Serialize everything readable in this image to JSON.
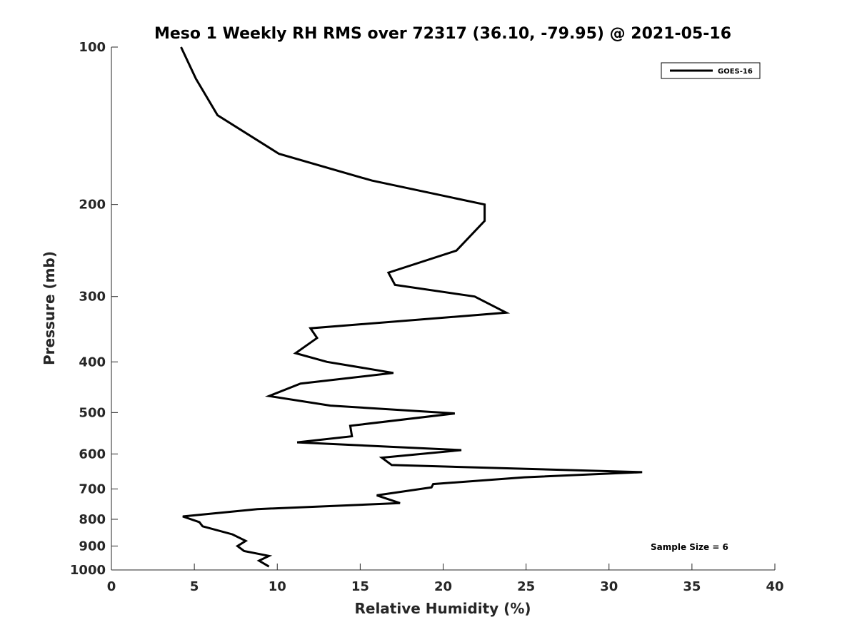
{
  "chart_data": {
    "type": "line",
    "title": "Meso 1 Weekly RH RMS over 72317 (36.10, -79.95) @ 2021-05-16",
    "xlabel": "Relative Humidity (%)",
    "ylabel": "Pressure (mb)",
    "xlim": [
      0,
      40
    ],
    "ylim": [
      100,
      1000
    ],
    "yscale": "log",
    "y_reversed": true,
    "xticks": [
      0,
      5,
      10,
      15,
      20,
      25,
      30,
      35,
      40
    ],
    "yticks": [
      100,
      200,
      300,
      400,
      500,
      600,
      700,
      800,
      900,
      1000
    ],
    "grid": false,
    "legend_position": "top-right",
    "annotation": "Sample Size = 6",
    "series": [
      {
        "name": "GOES-16",
        "color": "#000000",
        "x": [
          4.2,
          5.1,
          6.4,
          10.1,
          15.7,
          22.5,
          22.5,
          20.8,
          16.7,
          17.1,
          21.9,
          23.8,
          12.0,
          12.4,
          11.1,
          13.0,
          17.0,
          11.4,
          9.5,
          13.2,
          20.7,
          14.4,
          14.5,
          11.2,
          21.1,
          16.3,
          16.9,
          32.0,
          24.9,
          19.4,
          19.3,
          16.0,
          17.4,
          8.8,
          4.3,
          5.3,
          5.5,
          7.3,
          8.1,
          7.6,
          8.0,
          9.5,
          8.9,
          9.5
        ],
        "y": [
          100,
          115,
          135,
          160,
          180,
          200,
          215,
          245,
          270,
          285,
          300,
          322,
          345,
          360,
          385,
          400,
          420,
          440,
          465,
          485,
          502,
          530,
          555,
          570,
          590,
          610,
          630,
          650,
          665,
          685,
          695,
          720,
          745,
          765,
          790,
          810,
          825,
          855,
          880,
          900,
          920,
          940,
          960,
          985
        ]
      }
    ]
  }
}
